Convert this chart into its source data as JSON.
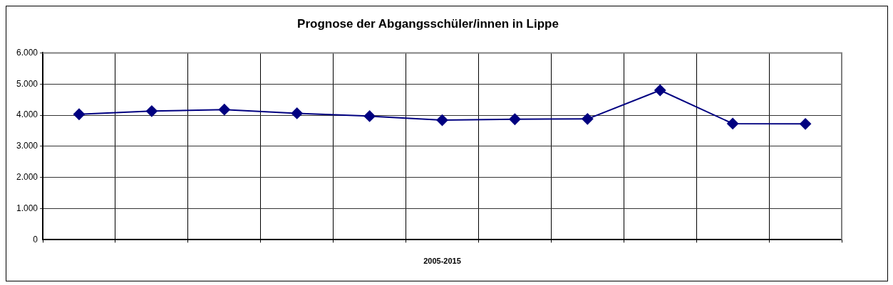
{
  "chart_data": {
    "type": "line",
    "title": "Prognose der Abgangsschüler/innen in Lippe",
    "xlabel": "2005-2015",
    "categories": [
      null,
      null,
      null,
      null,
      null,
      null,
      null,
      null,
      null,
      null,
      null
    ],
    "series": [
      {
        "color": "#000080",
        "values": [
          4030,
          4130,
          4180,
          4060,
          3970,
          3840,
          3870,
          3880,
          4800,
          3730,
          3720
        ]
      }
    ],
    "ylim": [
      0,
      6000
    ],
    "yticks": [
      {
        "value": 0,
        "label": "0"
      },
      {
        "value": 1000,
        "label": "1.000"
      },
      {
        "value": 2000,
        "label": "2.000"
      },
      {
        "value": 3000,
        "label": "3.000"
      },
      {
        "value": 4000,
        "label": "4.000"
      },
      {
        "value": 5000,
        "label": "5.000"
      },
      {
        "value": 6000,
        "label": "6.000"
      }
    ],
    "grid": true,
    "legend": false,
    "marker": "diamond",
    "line_style": "solid"
  }
}
